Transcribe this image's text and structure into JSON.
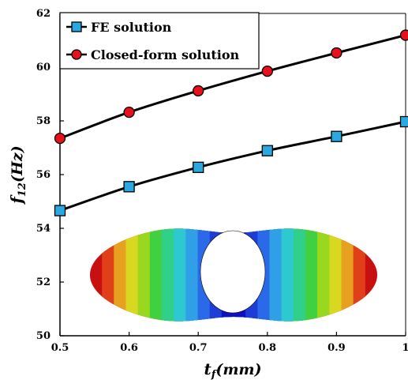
{
  "chart_data": {
    "type": "line",
    "xlabel": {
      "main": "t",
      "sub": "f",
      "rest": "(mm)"
    },
    "ylabel": {
      "main": "f",
      "sub": "12",
      "rest": "(Hz)"
    },
    "xlim": [
      0.5,
      1.0
    ],
    "ylim": [
      50,
      62
    ],
    "x_ticks": [
      0.5,
      0.6,
      0.7,
      0.8,
      0.9,
      1.0
    ],
    "x_tick_labels": [
      "0.5",
      "0.6",
      "0.7",
      "0.8",
      "0.9",
      "1"
    ],
    "y_ticks": [
      50,
      52,
      54,
      56,
      58,
      60,
      62
    ],
    "y_tick_labels": [
      "50",
      "52",
      "54",
      "56",
      "58",
      "60",
      "62"
    ],
    "grid": false,
    "legend_position": "top-left",
    "x": [
      0.5,
      0.6,
      0.7,
      0.8,
      0.9,
      1.0
    ],
    "series": [
      {
        "name": "FE solution",
        "marker": "square",
        "marker_color": "#29a9e0",
        "line_color": "#000000",
        "values": [
          54.66,
          55.55,
          56.27,
          56.89,
          57.42,
          57.97
        ]
      },
      {
        "name": "Closed-form solution",
        "marker": "circle",
        "marker_color": "#e8101c",
        "line_color": "#000000",
        "values": [
          57.35,
          58.32,
          59.12,
          59.85,
          60.53,
          61.19
        ]
      }
    ],
    "inset": {
      "type": "fe-mode-shape-contour",
      "colors": [
        "#1010c0",
        "#1e3cd8",
        "#2a6ae8",
        "#2fa0e8",
        "#2ec8d0",
        "#30d08a",
        "#40d040",
        "#9ad820",
        "#d8d820",
        "#e8a020",
        "#e04018",
        "#c81010"
      ]
    }
  }
}
